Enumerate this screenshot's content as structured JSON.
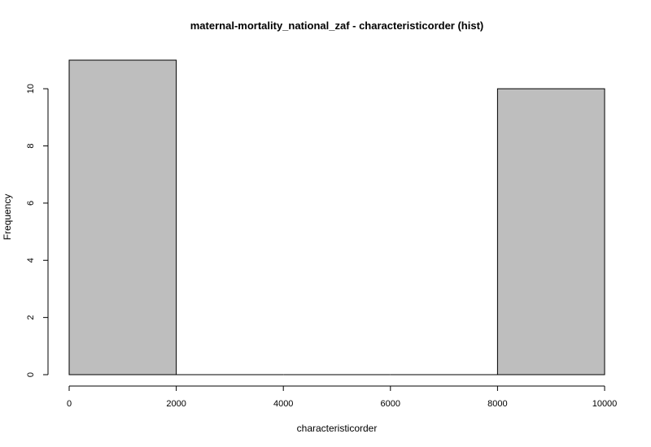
{
  "chart_data": {
    "type": "bar",
    "title": "maternal-mortality_national_zaf - characteristicorder (hist)",
    "xlabel": "characteristicorder",
    "ylabel": "Frequency",
    "bins": [
      {
        "start": 0,
        "end": 2000,
        "count": 11
      },
      {
        "start": 2000,
        "end": 4000,
        "count": 0
      },
      {
        "start": 4000,
        "end": 6000,
        "count": 0
      },
      {
        "start": 6000,
        "end": 8000,
        "count": 0
      },
      {
        "start": 8000,
        "end": 10000,
        "count": 10
      }
    ],
    "xlim": [
      0,
      10000
    ],
    "ylim": [
      0,
      11
    ],
    "x_ticks": [
      0,
      2000,
      4000,
      6000,
      8000,
      10000
    ],
    "y_ticks": [
      0,
      2,
      4,
      6,
      8,
      10
    ],
    "bar_color": "#bebebe",
    "grid": false,
    "legend": "none"
  }
}
